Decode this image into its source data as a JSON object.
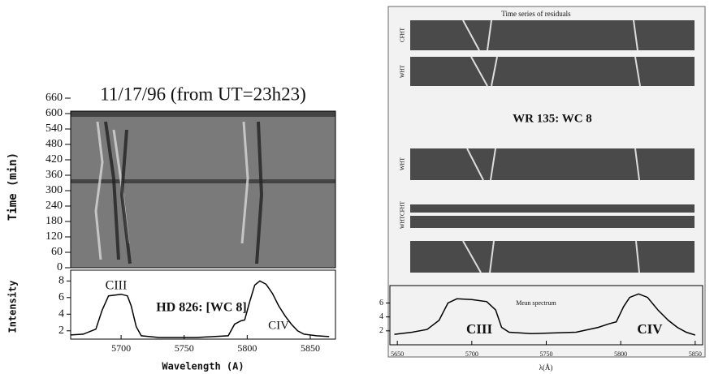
{
  "chart_data": [
    {
      "type": "line",
      "title": "11/17/96 (from UT=23h23)",
      "time_ylabel": "Time (min)",
      "time_ylim": [
        0,
        660
      ],
      "time_yticks": [
        0,
        60,
        120,
        180,
        240,
        300,
        360,
        420,
        480,
        540,
        600,
        660
      ],
      "x": [
        5660,
        5670,
        5680,
        5685,
        5690,
        5700,
        5705,
        5708,
        5712,
        5716,
        5730,
        5760,
        5785,
        5790,
        5795,
        5798,
        5802,
        5806,
        5810,
        5815,
        5820,
        5825,
        5830,
        5835,
        5840,
        5845,
        5855,
        5865
      ],
      "values": [
        1.5,
        1.6,
        2.2,
        4.5,
        6.2,
        6.4,
        6.2,
        5.0,
        2.5,
        1.4,
        1.2,
        1.2,
        1.4,
        2.8,
        3.2,
        3.3,
        5.5,
        7.5,
        8.0,
        7.6,
        6.5,
        5.0,
        3.8,
        2.8,
        2.0,
        1.6,
        1.4,
        1.3
      ],
      "color": "#000000",
      "xlim": [
        5660,
        5870
      ],
      "xticks": [
        5700,
        5750,
        5800,
        5850
      ],
      "ylim": [
        1,
        9.3
      ],
      "yticks": [
        2,
        4,
        6,
        8
      ],
      "xlabel": "Wavelength (A)",
      "ylabel": "Intensity",
      "annotations": [
        "CIII",
        "HD 826: [WC 8]",
        "CIV"
      ]
    },
    {
      "type": "line",
      "title": "Time series of residuals",
      "strip_labels": [
        "CFHT",
        "WHT",
        "WHT",
        "CFHT",
        "WHT"
      ],
      "x": [
        5648,
        5660,
        5670,
        5678,
        5684,
        5690,
        5700,
        5710,
        5716,
        5720,
        5725,
        5740,
        5770,
        5785,
        5792,
        5797,
        5802,
        5806,
        5812,
        5818,
        5825,
        5832,
        5838,
        5844,
        5850
      ],
      "values": [
        1.5,
        1.8,
        2.2,
        3.5,
        6.0,
        6.6,
        6.5,
        6.2,
        5.0,
        2.5,
        1.8,
        1.6,
        1.8,
        2.5,
        3.0,
        3.3,
        5.5,
        6.8,
        7.3,
        6.8,
        5.0,
        3.5,
        2.5,
        1.8,
        1.4
      ],
      "color": "#000000",
      "xlim": [
        5645,
        5855
      ],
      "xticks": [
        5650,
        5700,
        5750,
        5800,
        5850
      ],
      "ylim": [
        0,
        8.5
      ],
      "yticks": [
        2,
        4,
        6
      ],
      "xlabel": "λ(Å)",
      "annotations": [
        "WR 135: WC 8",
        "Mean spectrum",
        "CIII",
        "CIV"
      ]
    }
  ]
}
